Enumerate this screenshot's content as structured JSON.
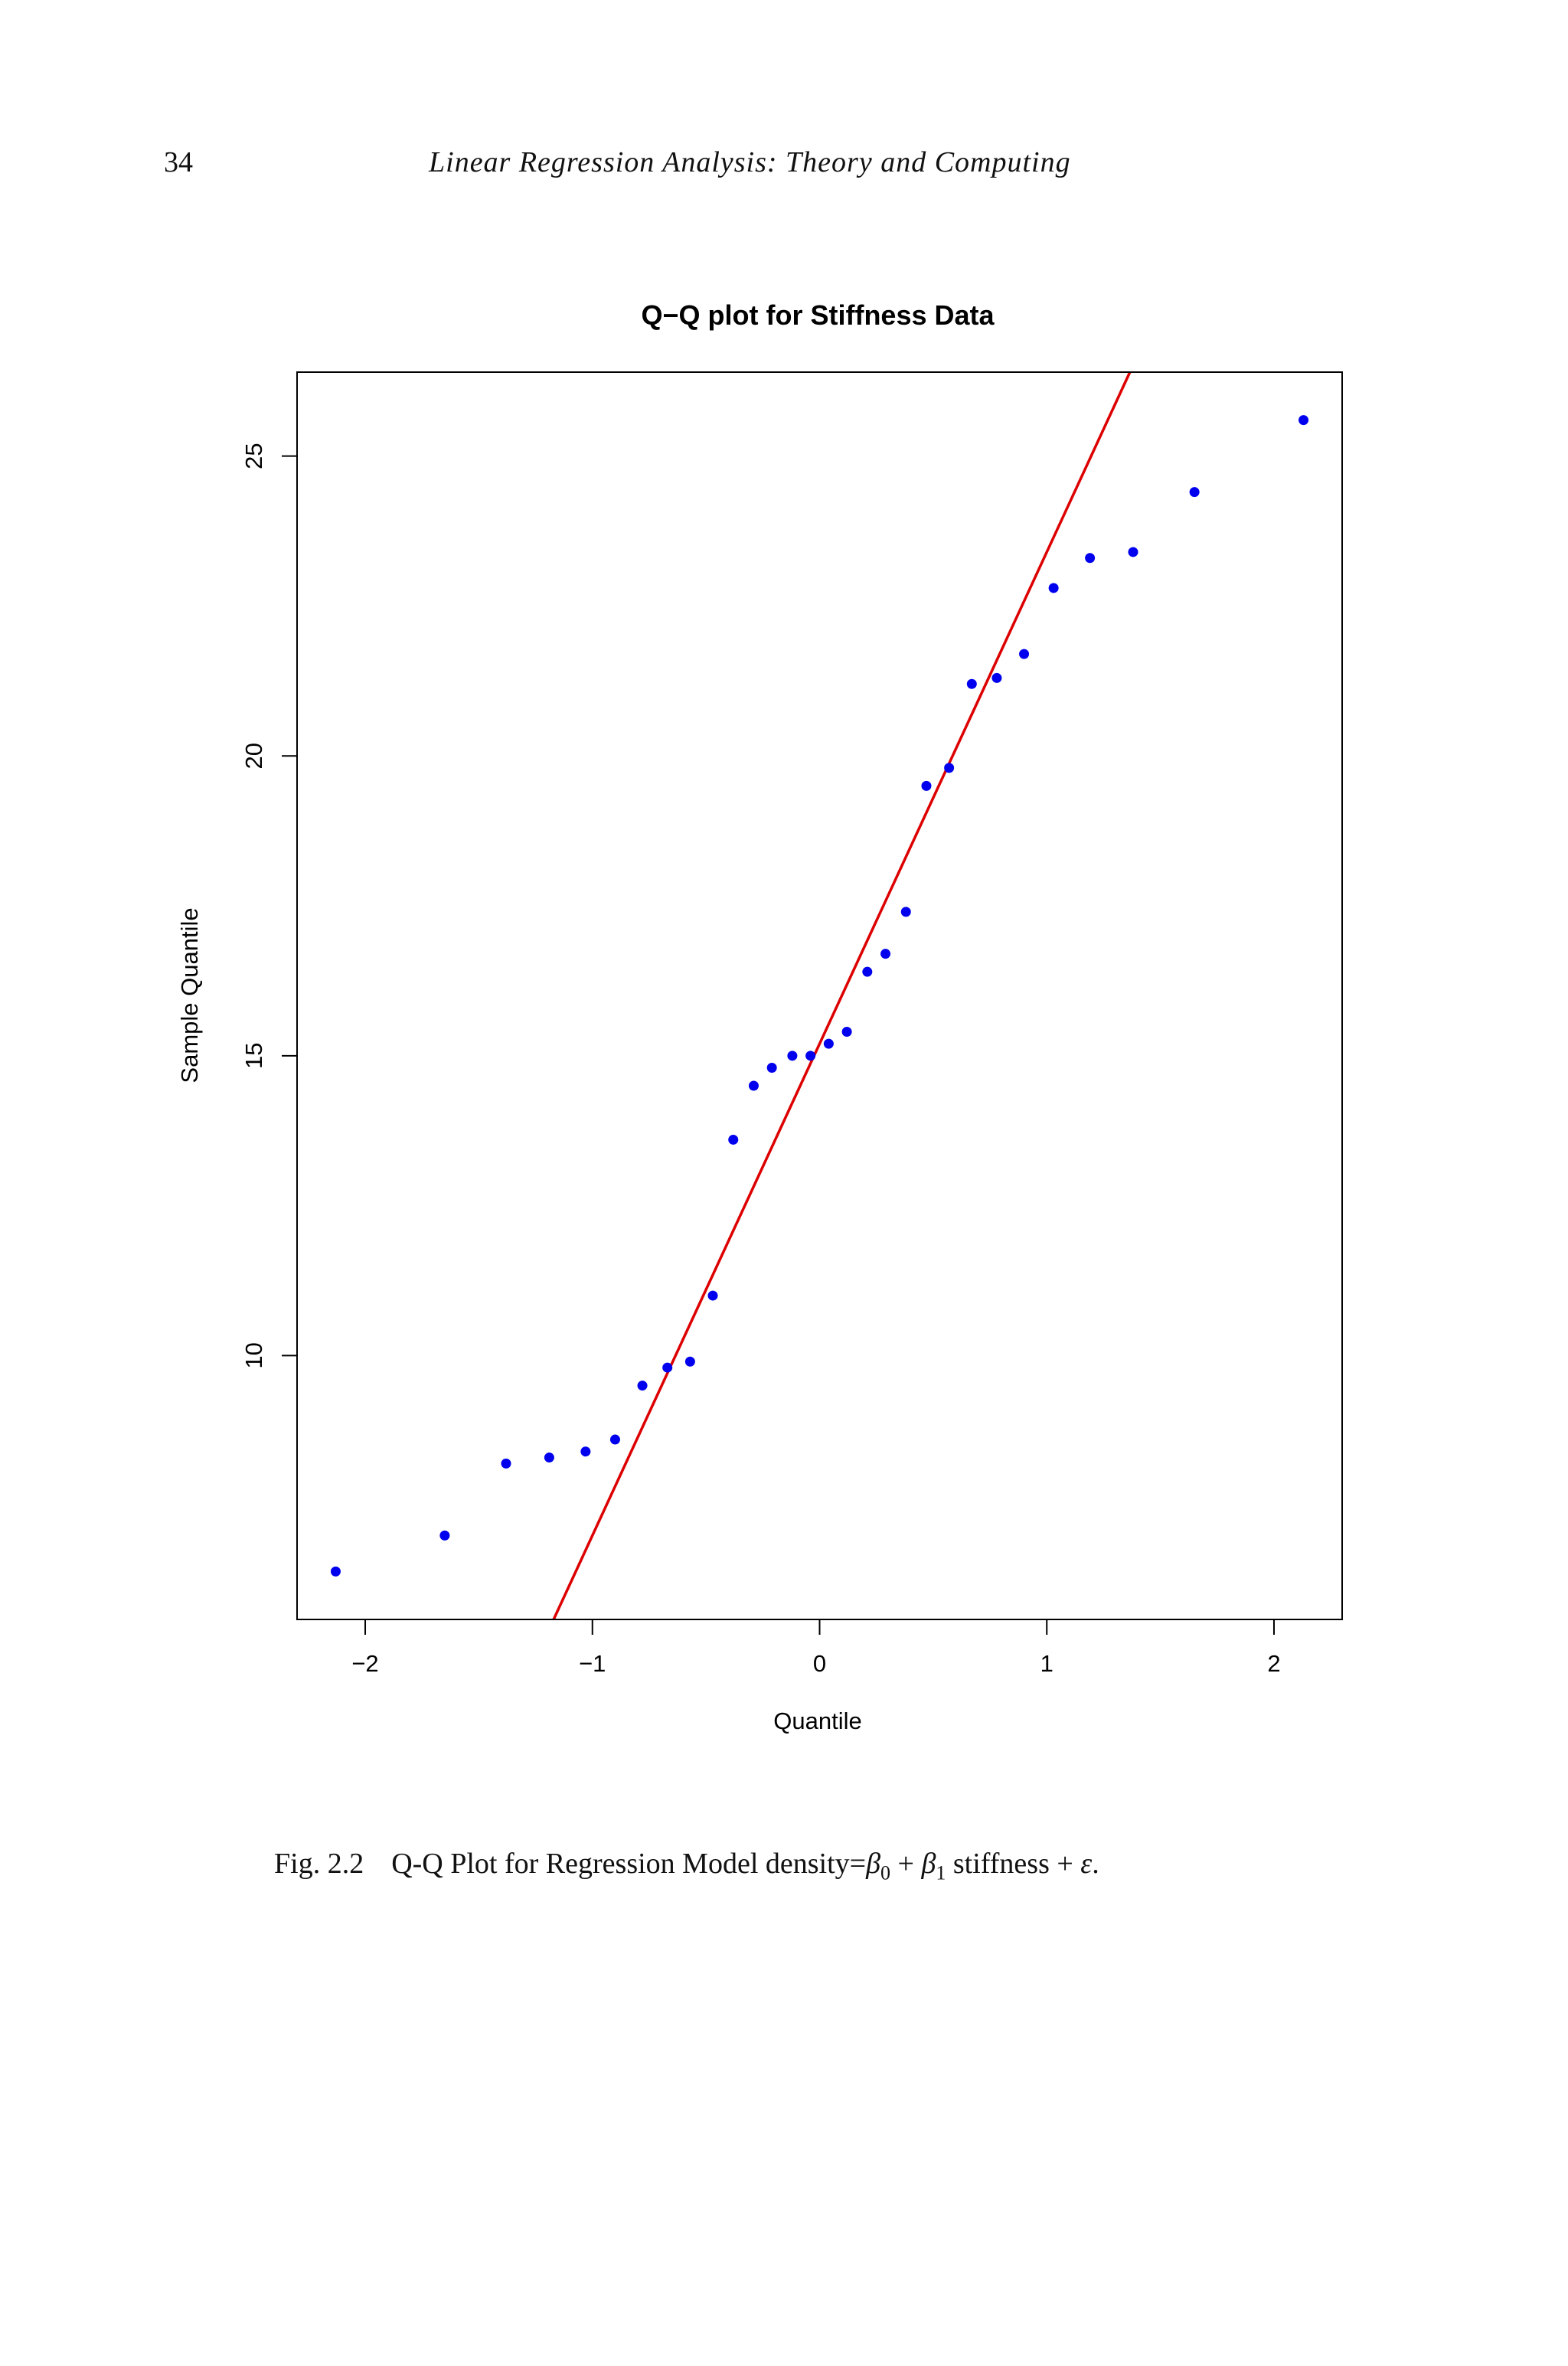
{
  "header": {
    "page_number": "34",
    "running_title": "Linear Regression Analysis: Theory and Computing"
  },
  "caption": {
    "label": "Fig. 2.2",
    "text_before": "Q-Q Plot for Regression Model density=",
    "beta0": "β",
    "beta0_sub": "0",
    "plus1": " + ",
    "beta1": "β",
    "beta1_sub": "1",
    "text_after": " stiffness + ",
    "epsilon": "ε",
    "end": "."
  },
  "colors": {
    "points": "#0000ee",
    "line": "#dd0000",
    "axis": "#000000"
  },
  "chart_data": {
    "type": "scatter",
    "title": "Q−Q plot for Stiffness Data",
    "xlabel": "Quantile",
    "ylabel": "Sample Quantile",
    "xlim": [
      -2.3,
      2.3
    ],
    "ylim": [
      5.6,
      26.4
    ],
    "xticks": [
      -2,
      -1,
      0,
      1,
      2
    ],
    "xtick_labels": [
      "−2",
      "−1",
      "0",
      "1",
      "2"
    ],
    "yticks": [
      10,
      15,
      20,
      25
    ],
    "ytick_labels": [
      "10",
      "15",
      "20",
      "25"
    ],
    "grid": false,
    "legend": "none",
    "series": [
      {
        "x": [
          -2.13,
          -1.65,
          -1.38,
          -1.19,
          -1.03,
          -0.9,
          -0.78,
          -0.67,
          -0.57,
          -0.47,
          -0.38,
          -0.29,
          -0.21,
          -0.12,
          -0.04,
          0.04,
          0.12,
          0.21,
          0.29,
          0.38,
          0.47,
          0.57,
          0.67,
          0.78,
          0.9,
          1.03,
          1.19,
          1.38,
          1.65,
          2.13
        ],
        "y": [
          6.4,
          7.0,
          8.2,
          8.3,
          8.4,
          8.6,
          9.5,
          9.8,
          9.9,
          11.0,
          13.6,
          14.5,
          14.8,
          15.0,
          15.0,
          15.2,
          15.4,
          16.4,
          16.7,
          17.4,
          19.5,
          19.8,
          21.2,
          21.3,
          21.7,
          22.8,
          23.3,
          23.4,
          24.4,
          25.6
        ]
      }
    ],
    "reference_line": {
      "intercept": 15.2,
      "slope": 8.2
    }
  }
}
